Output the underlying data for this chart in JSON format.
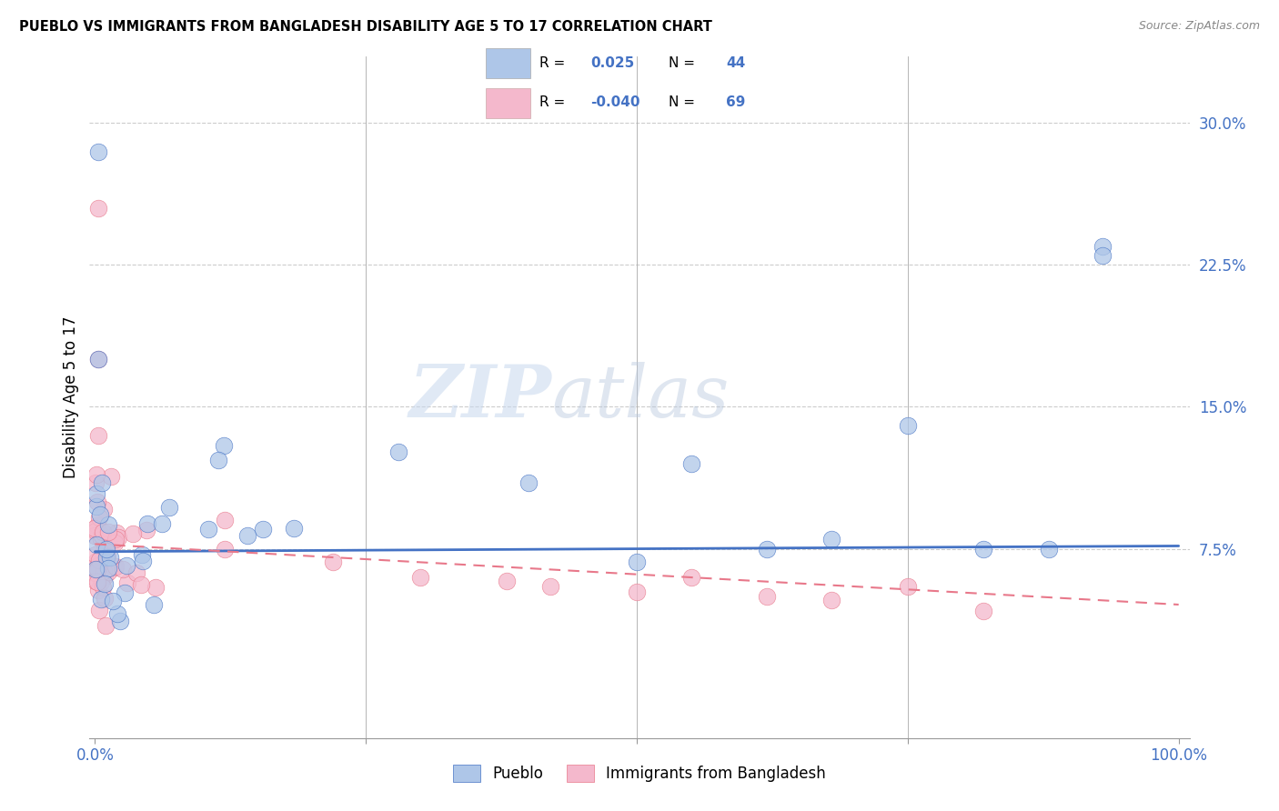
{
  "title": "PUEBLO VS IMMIGRANTS FROM BANGLADESH DISABILITY AGE 5 TO 17 CORRELATION CHART",
  "source": "Source: ZipAtlas.com",
  "ylabel": "Disability Age 5 to 17",
  "watermark_zip": "ZIP",
  "watermark_atlas": "atlas",
  "pueblo_color": "#aec6e8",
  "bangladesh_color": "#f4b8cc",
  "pueblo_line_color": "#4472C4",
  "bangladesh_line_color": "#e8788a",
  "bg_color": "#ffffff",
  "grid_color": "#cccccc",
  "title_fontsize": 10.5,
  "tick_label_color": "#4472C4",
  "legend_R1": "0.025",
  "legend_R2": "-0.040",
  "legend_N1": "44",
  "legend_N2": "69",
  "xlim": [
    -0.005,
    1.01
  ],
  "ylim": [
    -0.025,
    0.335
  ],
  "ytick_vals": [
    0.075,
    0.15,
    0.225,
    0.3
  ],
  "ytick_labels": [
    "7.5%",
    "15.0%",
    "22.5%",
    "30.0%"
  ],
  "xtick_vals": [
    0.0,
    0.25,
    0.5,
    0.75,
    1.0
  ],
  "xtick_labels": [
    "0.0%",
    "",
    "",
    "",
    "100.0%"
  ]
}
